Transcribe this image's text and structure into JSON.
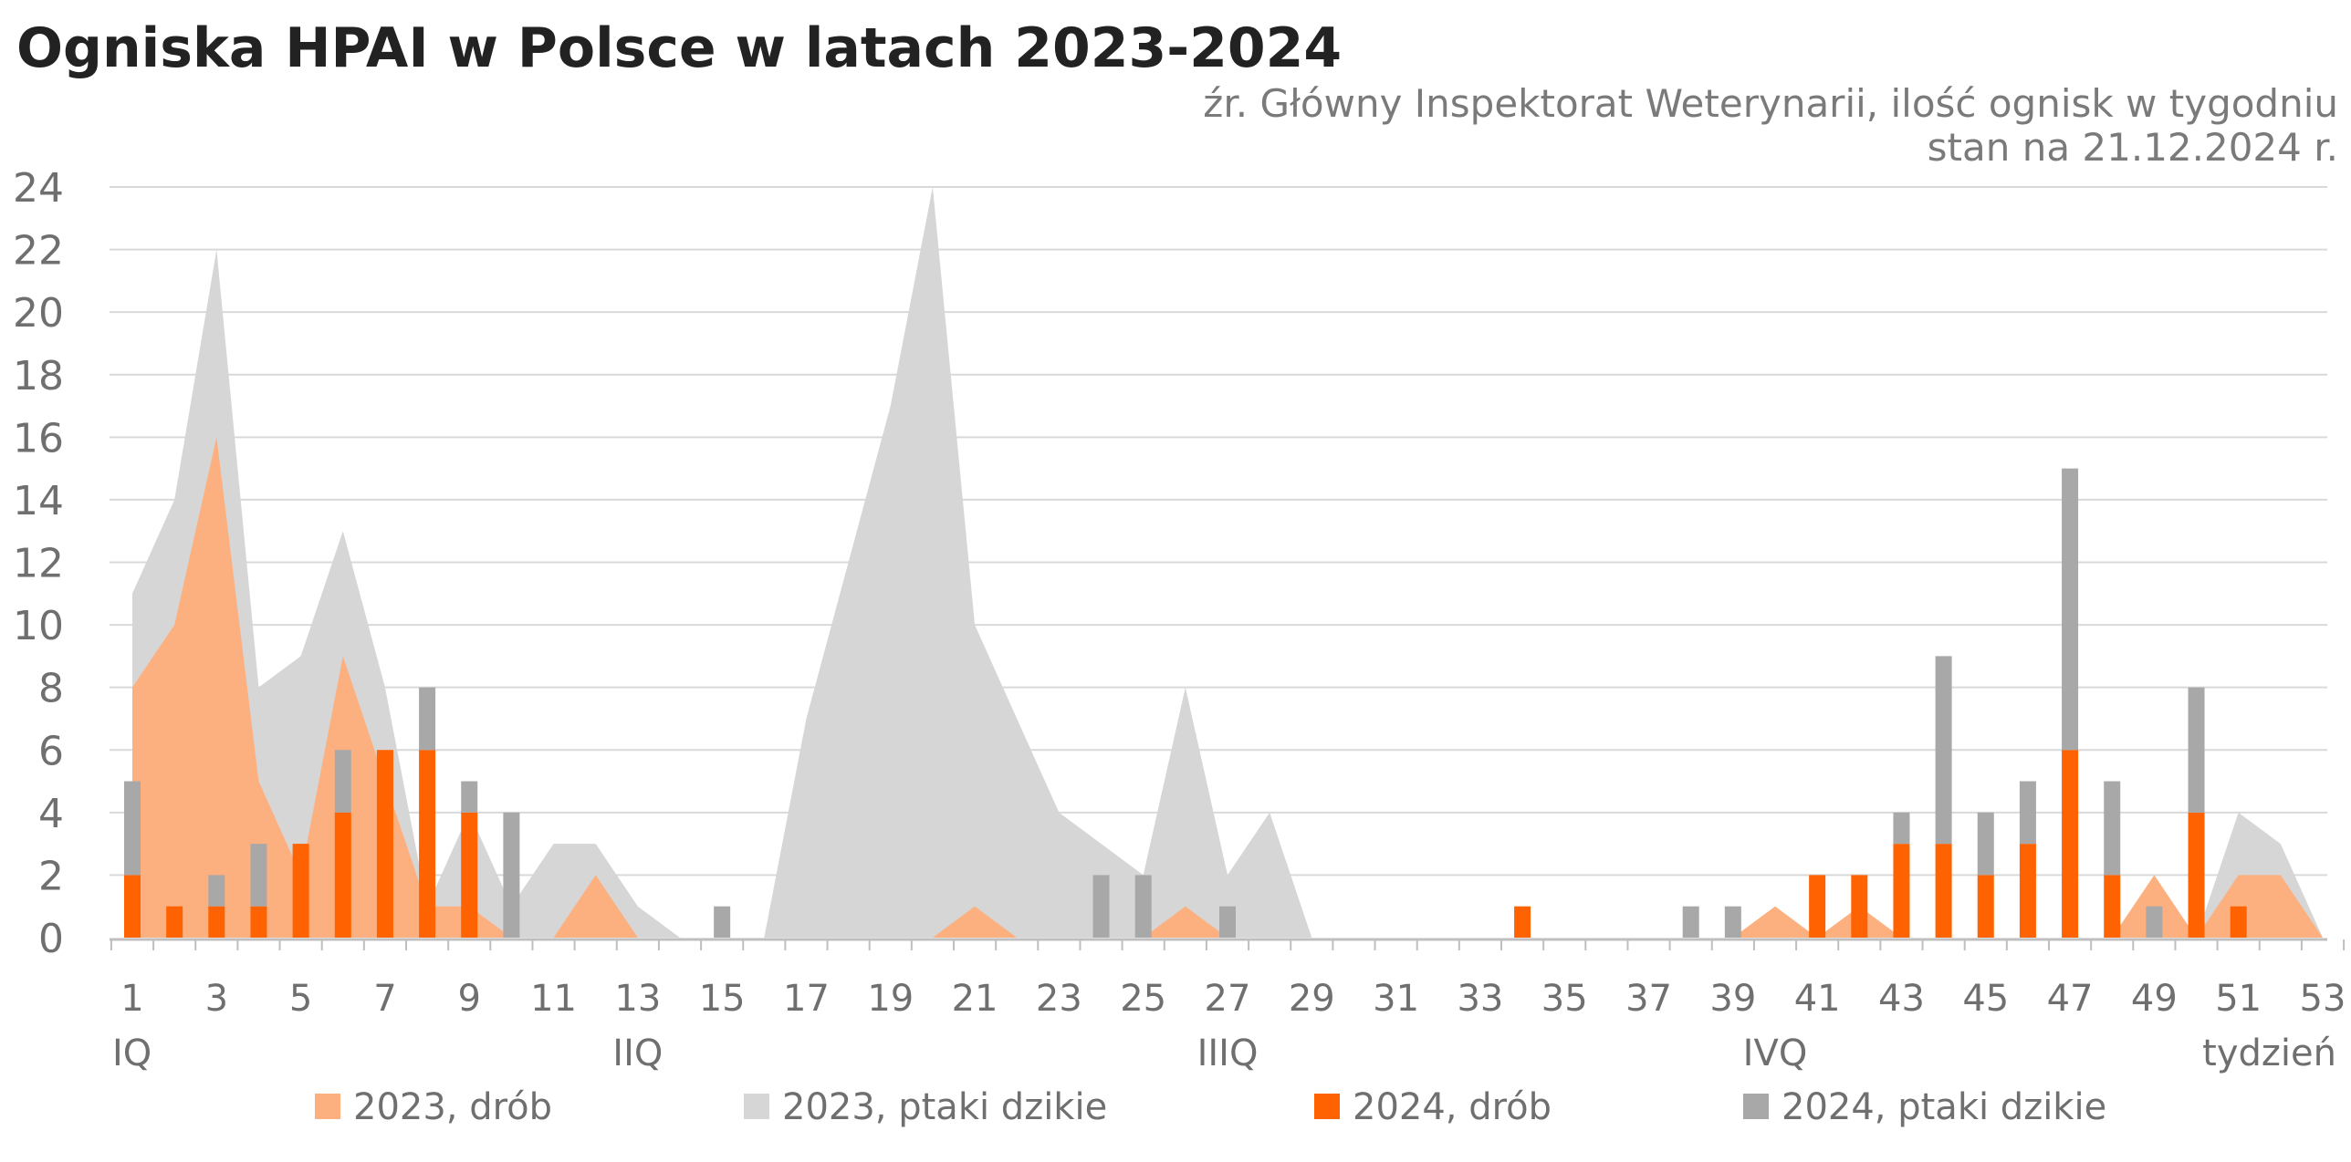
{
  "title": "Ogniska HPAI w Polsce w latach 2023-2024",
  "source": {
    "line1": "źr. Główny Inspektorat Weterynarii, ilość ognisk w tygodniu",
    "line2": "stan na 21.12.2024 r."
  },
  "colors": {
    "area_2023_drob": "#fdb07f",
    "area_2023_dzikie": "#d6d6d6",
    "bar_2024_drob": "#ff6200",
    "bar_2024_dzikie": "#a8a8a8",
    "grid": "#d9d9d9",
    "axis": "#bfbfbf"
  },
  "chart_data": {
    "type": "bar",
    "x": [
      1,
      2,
      3,
      4,
      5,
      6,
      7,
      8,
      9,
      10,
      11,
      12,
      13,
      14,
      15,
      16,
      17,
      18,
      19,
      20,
      21,
      22,
      23,
      24,
      25,
      26,
      27,
      28,
      29,
      30,
      31,
      32,
      33,
      34,
      35,
      36,
      37,
      38,
      39,
      40,
      41,
      42,
      43,
      44,
      45,
      46,
      47,
      48,
      49,
      50,
      51,
      52,
      53
    ],
    "xticks": [
      "1",
      "3",
      "5",
      "7",
      "9",
      "11",
      "13",
      "15",
      "17",
      "19",
      "21",
      "23",
      "25",
      "27",
      "29",
      "31",
      "33",
      "35",
      "37",
      "39",
      "41",
      "43",
      "45",
      "47",
      "49",
      "51",
      "53"
    ],
    "xlabel": "tydzień",
    "quarters": [
      "IQ",
      "IIQ",
      "IIIQ",
      "IVQ"
    ],
    "ylim": [
      0,
      24
    ],
    "yticks": [
      "0",
      "2",
      "4",
      "6",
      "8",
      "10",
      "12",
      "14",
      "16",
      "18",
      "20",
      "22",
      "24"
    ],
    "grid": true,
    "legend_position": "bottom",
    "series": [
      {
        "name": "2023, drób",
        "kind": "area",
        "values": [
          8,
          10,
          16,
          5,
          2,
          9,
          5,
          1,
          1,
          0,
          0,
          2,
          0,
          0,
          0,
          0,
          0,
          0,
          0,
          0,
          1,
          0,
          0,
          0,
          0,
          1,
          0,
          0,
          0,
          0,
          0,
          0,
          0,
          0,
          0,
          0,
          0,
          0,
          0,
          1,
          0,
          1,
          0,
          0,
          0,
          0,
          0,
          0,
          2,
          0,
          2,
          2,
          0
        ]
      },
      {
        "name": "2023, ptaki dzikie",
        "kind": "area",
        "values": [
          11,
          14,
          22,
          8,
          9,
          13,
          8,
          1,
          4,
          1,
          3,
          3,
          1,
          0,
          0,
          0,
          7,
          12,
          17,
          24,
          10,
          7,
          4,
          3,
          2,
          8,
          2,
          4,
          0,
          0,
          0,
          0,
          0,
          0,
          0,
          0,
          0,
          0,
          0,
          0,
          0,
          0,
          0,
          0,
          0,
          0,
          0,
          0,
          0,
          0,
          4,
          3,
          0
        ]
      },
      {
        "name": "2024, drób",
        "kind": "bar",
        "values": [
          2,
          1,
          1,
          1,
          3,
          4,
          6,
          6,
          4,
          0,
          0,
          0,
          0,
          0,
          0,
          0,
          0,
          0,
          0,
          0,
          0,
          0,
          0,
          0,
          0,
          0,
          0,
          0,
          0,
          0,
          0,
          0,
          0,
          1,
          0,
          0,
          0,
          0,
          0,
          0,
          2,
          2,
          3,
          3,
          2,
          3,
          6,
          2,
          0,
          4,
          1,
          0,
          0
        ]
      },
      {
        "name": "2024, ptaki dzikie",
        "kind": "bar",
        "values": [
          3,
          0,
          1,
          2,
          0,
          2,
          0,
          2,
          1,
          4,
          0,
          0,
          0,
          0,
          1,
          0,
          0,
          0,
          0,
          0,
          0,
          0,
          0,
          2,
          2,
          0,
          1,
          0,
          0,
          0,
          0,
          0,
          0,
          0,
          0,
          0,
          0,
          1,
          1,
          0,
          0,
          0,
          1,
          6,
          2,
          2,
          9,
          3,
          1,
          4,
          0,
          0,
          0
        ]
      }
    ]
  }
}
